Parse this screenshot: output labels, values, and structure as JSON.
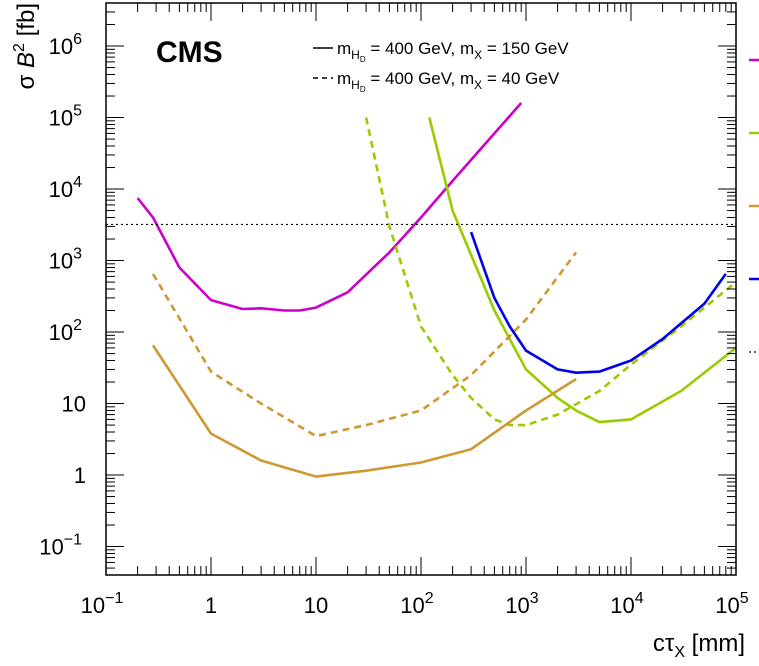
{
  "chart_data": {
    "type": "line",
    "title": "CMS",
    "xlabel": {
      "prefix": "cτ",
      "sub": "X",
      "suffix": " [mm]"
    },
    "ylabel": {
      "prefix": "σ ",
      "var": "B",
      "sup": "2",
      "suffix": " [fb]"
    },
    "xscale": "log",
    "yscale": "log",
    "xlim": [
      0.1,
      100000
    ],
    "ylim": [
      0.04,
      4000000
    ],
    "grid": false,
    "x_ticks": [
      {
        "value": 0.1,
        "base": "10",
        "exp": "−1"
      },
      {
        "value": 1,
        "base": "1",
        "exp": ""
      },
      {
        "value": 10,
        "base": "10",
        "exp": ""
      },
      {
        "value": 100,
        "base": "10",
        "exp": "2"
      },
      {
        "value": 1000,
        "base": "10",
        "exp": "3"
      },
      {
        "value": 10000,
        "base": "10",
        "exp": "4"
      },
      {
        "value": 100000,
        "base": "10",
        "exp": "5"
      }
    ],
    "y_ticks": [
      {
        "value": 0.1,
        "base": "10",
        "exp": "−1"
      },
      {
        "value": 1,
        "base": "1",
        "exp": ""
      },
      {
        "value": 10,
        "base": "10",
        "exp": ""
      },
      {
        "value": 100,
        "base": "10",
        "exp": "2"
      },
      {
        "value": 1000,
        "base": "10",
        "exp": "3"
      },
      {
        "value": 10000,
        "base": "10",
        "exp": "4"
      },
      {
        "value": 100000,
        "base": "10",
        "exp": "5"
      },
      {
        "value": 1000000,
        "base": "10",
        "exp": "6"
      }
    ],
    "style_legend": [
      {
        "dash": "solid",
        "label": {
          "a": "m",
          "sub1": "H",
          "sub2": "D",
          "b": " = 400 GeV, m",
          "sub3": "X",
          "c": " = 150 GeV"
        }
      },
      {
        "dash": "dashed",
        "label": {
          "a": "m",
          "sub1": "H",
          "sub2": "D",
          "b": " = 400 GeV, m",
          "sub3": "X",
          "c": " = 40 GeV"
        }
      }
    ],
    "colors": {
      "magenta": "#cc00cc",
      "green": "#99cc00",
      "orange": "#cc9933",
      "blue": "#0000ee"
    },
    "series": [
      {
        "color": "magenta",
        "dash": "solid",
        "x": [
          0.2,
          0.28,
          0.5,
          1,
          2,
          3,
          5,
          7,
          10,
          20,
          50,
          100,
          200,
          500,
          900
        ],
        "y": [
          7500,
          4000,
          800,
          280,
          210,
          215,
          200,
          200,
          220,
          360,
          1300,
          4000,
          13000,
          60000,
          160000
        ]
      },
      {
        "color": "green",
        "dash": "dashed",
        "x": [
          30,
          50,
          100,
          200,
          300,
          500,
          700,
          1000,
          2000,
          5000,
          10000,
          30000,
          100000
        ],
        "y": [
          100000,
          3000,
          120,
          25,
          12,
          6,
          5,
          5,
          7,
          15,
          35,
          120,
          500
        ]
      },
      {
        "color": "green",
        "dash": "solid",
        "x": [
          120,
          200,
          300,
          500,
          1000,
          2000,
          3000,
          5000,
          10000,
          30000,
          100000
        ],
        "y": [
          100000,
          5000,
          1200,
          200,
          30,
          12,
          8,
          5.5,
          6,
          15,
          60
        ]
      },
      {
        "color": "orange",
        "dash": "dashed",
        "x": [
          0.28,
          1,
          3,
          10,
          30,
          100,
          300,
          1000,
          3000
        ],
        "y": [
          650,
          28,
          10,
          3.5,
          5,
          8,
          25,
          150,
          1300
        ]
      },
      {
        "color": "orange",
        "dash": "solid",
        "x": [
          0.28,
          1,
          3,
          10,
          30,
          100,
          300,
          1000,
          3000
        ],
        "y": [
          65,
          3.8,
          1.6,
          0.95,
          1.15,
          1.5,
          2.3,
          8,
          22
        ]
      },
      {
        "color": "blue",
        "dash": "solid",
        "x": [
          300,
          500,
          700,
          1000,
          2000,
          3000,
          5000,
          10000,
          20000,
          50000,
          80000
        ],
        "y": [
          2500,
          300,
          120,
          55,
          30,
          27,
          28,
          40,
          80,
          250,
          650
        ]
      }
    ],
    "reference_line": {
      "y": 3200,
      "style": "dotted"
    },
    "right_legend": [
      {
        "color": "magenta",
        "dash": "solid"
      },
      {
        "color": "green",
        "dash": "solid"
      },
      {
        "color": "orange",
        "dash": "solid"
      },
      {
        "color": "blue",
        "dash": "solid"
      },
      {
        "color": "black",
        "dash": "dotted"
      }
    ]
  }
}
